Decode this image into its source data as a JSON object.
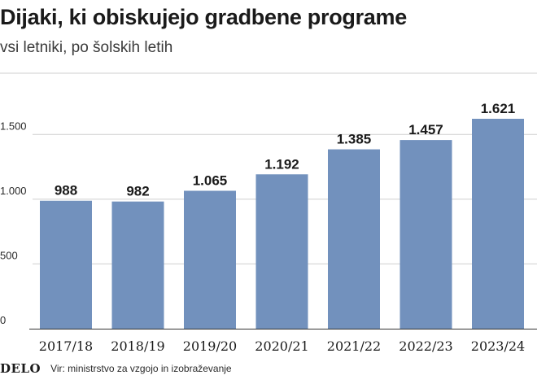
{
  "chart_data": {
    "type": "bar",
    "title": "Dijaki, ki obiskujejo gradbene programe",
    "subtitle": "vsi letniki, po šolskih letih",
    "categories": [
      "2017/18",
      "2018/19",
      "2019/20",
      "2020/21",
      "2021/22",
      "2022/23",
      "2023/24"
    ],
    "values": [
      988,
      982,
      1065,
      1192,
      1385,
      1457,
      1621
    ],
    "value_labels": [
      "988",
      "982",
      "1.065",
      "1.192",
      "1.385",
      "1.457",
      "1.621"
    ],
    "yticks": [
      0,
      500,
      1000,
      1500
    ],
    "ytick_labels": [
      "0",
      "500",
      "1.000",
      "1.500"
    ],
    "ylim": [
      0,
      1621
    ],
    "grid": true,
    "bar_color": "#7291bd",
    "grid_color": "#cfcfcf"
  },
  "footer": {
    "logo": "DELO",
    "source": "Vir: ministrstvo za vzgojo in izobraževanje"
  }
}
